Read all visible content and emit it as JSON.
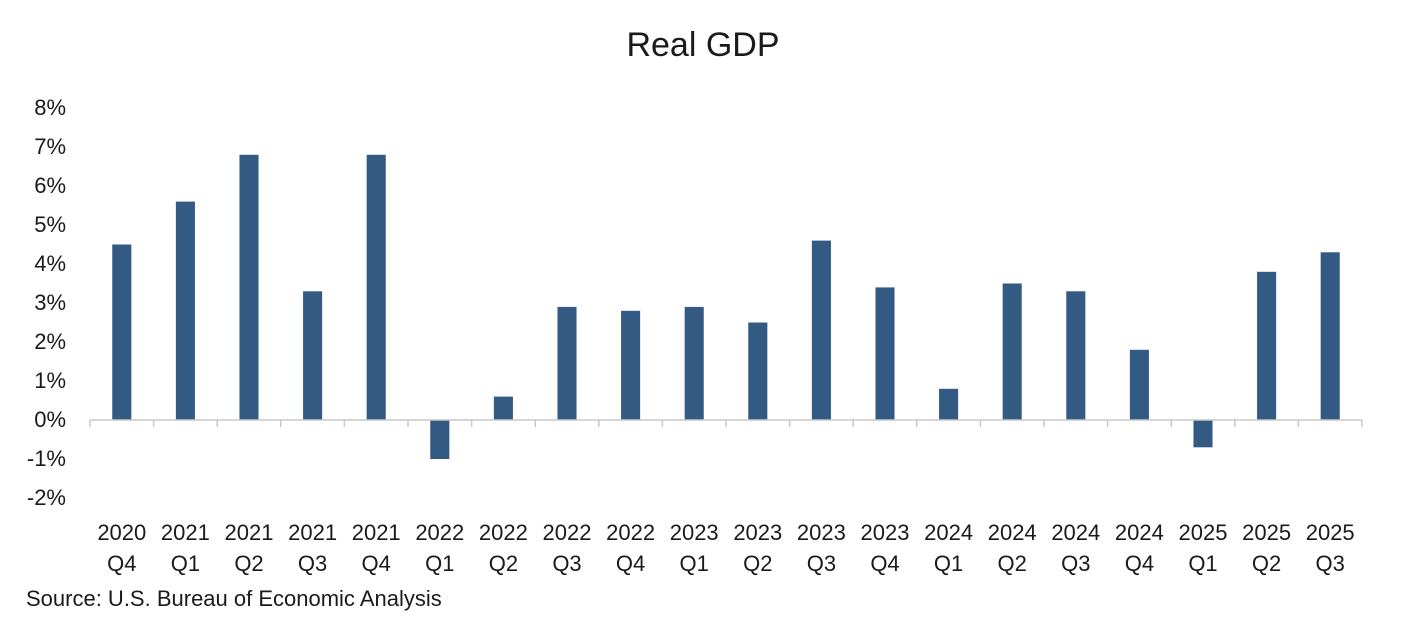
{
  "chart_data": {
    "type": "bar",
    "title": "Real GDP",
    "source": "Source: U.S. Bureau of Economic Analysis",
    "categories": [
      [
        "2020",
        "Q4"
      ],
      [
        "2021",
        "Q1"
      ],
      [
        "2021",
        "Q2"
      ],
      [
        "2021",
        "Q3"
      ],
      [
        "2021",
        "Q4"
      ],
      [
        "2022",
        "Q1"
      ],
      [
        "2022",
        "Q2"
      ],
      [
        "2022",
        "Q3"
      ],
      [
        "2022",
        "Q4"
      ],
      [
        "2023",
        "Q1"
      ],
      [
        "2023",
        "Q2"
      ],
      [
        "2023",
        "Q3"
      ],
      [
        "2023",
        "Q4"
      ],
      [
        "2024",
        "Q1"
      ],
      [
        "2024",
        "Q2"
      ],
      [
        "2024",
        "Q3"
      ],
      [
        "2024",
        "Q4"
      ],
      [
        "2025",
        "Q1"
      ],
      [
        "2025",
        "Q2"
      ],
      [
        "2025",
        "Q3"
      ]
    ],
    "values": [
      4.5,
      5.6,
      6.8,
      3.3,
      6.8,
      -1.0,
      0.6,
      2.9,
      2.8,
      2.9,
      2.5,
      4.6,
      3.4,
      0.8,
      3.5,
      3.3,
      1.8,
      -0.7,
      3.8,
      4.3
    ],
    "ylim": [
      -2,
      8
    ],
    "yticks": [
      -2,
      -1,
      0,
      1,
      2,
      3,
      4,
      5,
      6,
      7,
      8
    ],
    "ytick_labels": [
      "-2%",
      "-1%",
      "0%",
      "1%",
      "2%",
      "3%",
      "4%",
      "5%",
      "6%",
      "7%",
      "8%"
    ],
    "bar_color": "#335a82",
    "axis_color": "#c8c8c8",
    "grid": false,
    "legend": "none"
  }
}
